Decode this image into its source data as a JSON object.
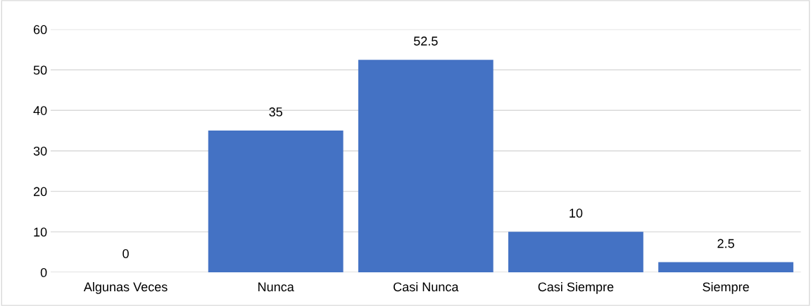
{
  "chart_data": {
    "type": "bar",
    "categories": [
      "Algunas Veces",
      "Nunca",
      "Casi Nunca",
      "Casi Siempre",
      "Siempre"
    ],
    "values": [
      0,
      35,
      52.5,
      10,
      2.5
    ],
    "color": "#4472c4",
    "ylim": [
      0,
      60
    ],
    "yticks": [
      0,
      10,
      20,
      30,
      40,
      50,
      60
    ],
    "grid": "y",
    "data_labels": true,
    "legend": false
  }
}
